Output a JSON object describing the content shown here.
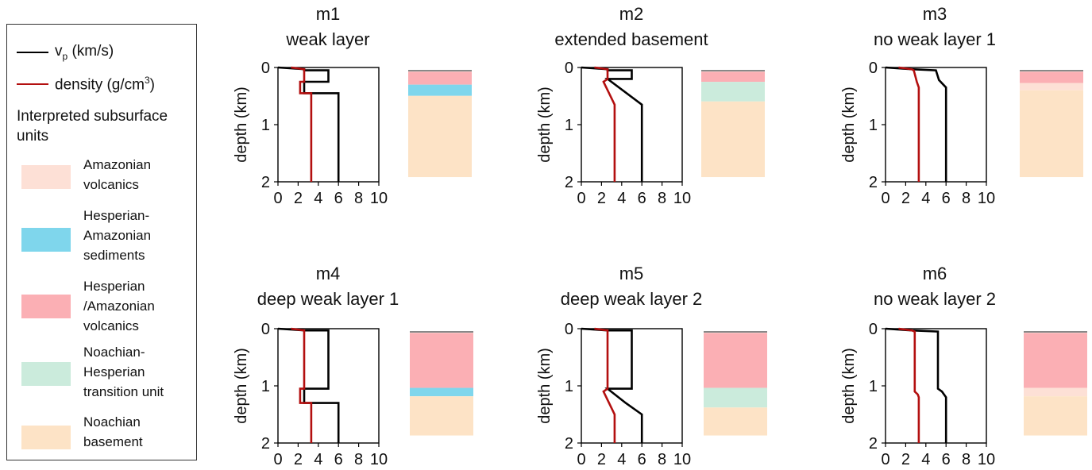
{
  "legend": {
    "vp_label_main": "v",
    "vp_label_sub": "p",
    "vp_label_unit": " (km/s)",
    "vp_color": "#000000",
    "density_label": "density (g/cm",
    "density_sup": "3",
    "density_close": ")",
    "density_color": "#b30f0f",
    "heading": "Interpreted subsurface units",
    "units": [
      {
        "key": "amazonian_volcanics",
        "label": "Amazonian\nvolcanics",
        "color": "#fde0d6"
      },
      {
        "key": "hesperian_amazonian_sediments",
        "label": "Hesperian-\nAmazonian\nsediments",
        "color": "#7fd6ec"
      },
      {
        "key": "hesperian_amazonian_volcanics",
        "label": "Hesperian\n/Amazonian\nvolcanics",
        "color": "#fbafb4"
      },
      {
        "key": "noachian_hesperian_transition",
        "label": "Noachian-\nHesperian\ntransition unit",
        "color": "#cbebdc"
      },
      {
        "key": "noachian_basement",
        "label": "Noachian\nbasement",
        "color": "#fde3c6"
      }
    ]
  },
  "chart_data": [
    {
      "type": "line",
      "id": "m1",
      "title": [
        "m1",
        "weak layer"
      ],
      "ylabel": "depth (km)",
      "xlim": [
        0,
        10
      ],
      "ylim": [
        2,
        0
      ],
      "xticks": [
        "0",
        "2",
        "4",
        "6",
        "8",
        "10"
      ],
      "yticks": [
        "0",
        "1",
        "2"
      ],
      "series": [
        {
          "name": "vp",
          "color": "#000000",
          "x": [
            0,
            2.6,
            2.6,
            5.0,
            5.0,
            2.6,
            2.6,
            6.0,
            6.0,
            6.0
          ],
          "y": [
            0,
            0.03,
            0.05,
            0.05,
            0.25,
            0.25,
            0.45,
            0.45,
            1.9,
            2.0
          ]
        },
        {
          "name": "density",
          "color": "#b30f0f",
          "x": [
            1.3,
            2.6,
            2.6,
            2.2,
            2.2,
            2.6,
            2.6,
            3.3,
            3.3,
            3.3
          ],
          "y": [
            0,
            0.03,
            0.25,
            0.25,
            0.45,
            0.45,
            0.45,
            0.45,
            1.9,
            2.0
          ]
        }
      ],
      "column": [
        {
          "unit": "amazonian_volcanics",
          "top": 0,
          "bottom": 0.02
        },
        {
          "unit": "hesperian_amazonian_volcanics",
          "top": 0.02,
          "bottom": 0.25
        },
        {
          "unit": "hesperian_amazonian_sediments",
          "top": 0.25,
          "bottom": 0.45
        },
        {
          "unit": "noachian_basement",
          "top": 0.45,
          "bottom": 1.9
        }
      ]
    },
    {
      "type": "line",
      "id": "m2",
      "title": [
        "m2",
        "extended basement"
      ],
      "ylabel": "depth (km)",
      "xlim": [
        0,
        10
      ],
      "ylim": [
        2,
        0
      ],
      "xticks": [
        "0",
        "2",
        "4",
        "6",
        "8",
        "10"
      ],
      "yticks": [
        "0",
        "1",
        "2"
      ],
      "series": [
        {
          "name": "vp",
          "color": "#000000",
          "x": [
            0,
            2.6,
            2.6,
            5.0,
            5.0,
            2.6,
            6.0,
            6.0
          ],
          "y": [
            0,
            0.03,
            0.05,
            0.05,
            0.2,
            0.2,
            0.65,
            2.0
          ]
        },
        {
          "name": "density",
          "color": "#b30f0f",
          "x": [
            1.3,
            2.6,
            2.6,
            2.2,
            3.3,
            3.3
          ],
          "y": [
            0,
            0.03,
            0.2,
            0.25,
            0.65,
            2.0
          ]
        }
      ],
      "column": [
        {
          "unit": "amazonian_volcanics",
          "top": 0,
          "bottom": 0.02
        },
        {
          "unit": "hesperian_amazonian_volcanics",
          "top": 0.02,
          "bottom": 0.2
        },
        {
          "unit": "noachian_hesperian_transition",
          "top": 0.2,
          "bottom": 0.55
        },
        {
          "unit": "noachian_basement",
          "top": 0.55,
          "bottom": 1.9
        }
      ]
    },
    {
      "type": "line",
      "id": "m3",
      "title": [
        "m3",
        "no weak layer 1"
      ],
      "ylabel": "depth (km)",
      "xlim": [
        0,
        10
      ],
      "ylim": [
        2,
        0
      ],
      "xticks": [
        "0",
        "2",
        "4",
        "6",
        "8",
        "10"
      ],
      "yticks": [
        "0",
        "1",
        "2"
      ],
      "series": [
        {
          "name": "vp",
          "color": "#000000",
          "x": [
            0,
            2.6,
            5.0,
            5.3,
            6.0,
            6.0
          ],
          "y": [
            0,
            0.03,
            0.05,
            0.22,
            0.35,
            2.0
          ]
        },
        {
          "name": "density",
          "color": "#b30f0f",
          "x": [
            1.3,
            2.6,
            2.8,
            3.1,
            3.3,
            3.3
          ],
          "y": [
            0,
            0.03,
            0.05,
            0.25,
            0.35,
            2.0
          ]
        }
      ],
      "column": [
        {
          "unit": "amazonian_volcanics",
          "top": 0,
          "bottom": 0.02
        },
        {
          "unit": "hesperian_amazonian_volcanics",
          "top": 0.02,
          "bottom": 0.22
        },
        {
          "unit": "amazonian_volcanics",
          "top": 0.22,
          "bottom": 0.35
        },
        {
          "unit": "noachian_basement",
          "top": 0.35,
          "bottom": 1.9
        }
      ]
    },
    {
      "type": "line",
      "id": "m4",
      "title": [
        "m4",
        "deep weak layer 1"
      ],
      "ylabel": "depth (km)",
      "xlim": [
        0,
        10
      ],
      "ylim": [
        2,
        0
      ],
      "xticks": [
        "0",
        "2",
        "4",
        "6",
        "8",
        "10"
      ],
      "yticks": [
        "0",
        "1",
        "2"
      ],
      "series": [
        {
          "name": "vp",
          "color": "#000000",
          "x": [
            0,
            2.6,
            2.6,
            5.0,
            5.0,
            2.6,
            2.6,
            6.0,
            6.0
          ],
          "y": [
            0,
            0.03,
            0.03,
            0.03,
            1.05,
            1.05,
            1.3,
            1.3,
            2.0
          ]
        },
        {
          "name": "density",
          "color": "#b30f0f",
          "x": [
            1.3,
            2.6,
            2.6,
            2.2,
            2.2,
            2.6,
            3.3,
            3.3
          ],
          "y": [
            0,
            0.03,
            1.05,
            1.05,
            1.3,
            1.3,
            1.3,
            2.0
          ]
        }
      ],
      "column": [
        {
          "unit": "amazonian_volcanics",
          "top": 0,
          "bottom": 0.02
        },
        {
          "unit": "hesperian_amazonian_volcanics",
          "top": 0.02,
          "bottom": 1.0
        },
        {
          "unit": "hesperian_amazonian_sediments",
          "top": 1.0,
          "bottom": 1.15
        },
        {
          "unit": "noachian_basement",
          "top": 1.15,
          "bottom": 1.85
        }
      ]
    },
    {
      "type": "line",
      "id": "m5",
      "title": [
        "m5",
        "deep weak layer 2"
      ],
      "ylabel": "depth (km)",
      "xlim": [
        0,
        10
      ],
      "ylim": [
        2,
        0
      ],
      "xticks": [
        "0",
        "2",
        "4",
        "6",
        "8",
        "10"
      ],
      "yticks": [
        "0",
        "1",
        "2"
      ],
      "series": [
        {
          "name": "vp",
          "color": "#000000",
          "x": [
            0,
            2.6,
            2.6,
            5.0,
            5.0,
            2.6,
            4.4,
            6.0,
            6.0
          ],
          "y": [
            0,
            0.03,
            0.03,
            0.03,
            1.05,
            1.05,
            1.3,
            1.5,
            2.0
          ]
        },
        {
          "name": "density",
          "color": "#b30f0f",
          "x": [
            1.3,
            2.6,
            2.6,
            2.2,
            3.3,
            3.3
          ],
          "y": [
            0,
            0.03,
            1.05,
            1.1,
            1.5,
            2.0
          ]
        }
      ],
      "column": [
        {
          "unit": "amazonian_volcanics",
          "top": 0,
          "bottom": 0.02
        },
        {
          "unit": "hesperian_amazonian_volcanics",
          "top": 0.02,
          "bottom": 1.0
        },
        {
          "unit": "noachian_hesperian_transition",
          "top": 1.0,
          "bottom": 1.35
        },
        {
          "unit": "noachian_basement",
          "top": 1.35,
          "bottom": 1.85
        }
      ]
    },
    {
      "type": "line",
      "id": "m6",
      "title": [
        "m6",
        "no weak layer 2"
      ],
      "ylabel": "depth (km)",
      "xlim": [
        0,
        10
      ],
      "ylim": [
        2,
        0
      ],
      "xticks": [
        "0",
        "2",
        "4",
        "6",
        "8",
        "10"
      ],
      "yticks": [
        "0",
        "1",
        "2"
      ],
      "series": [
        {
          "name": "vp",
          "color": "#000000",
          "x": [
            0,
            2.6,
            5.2,
            5.2,
            5.6,
            6.0,
            6.0
          ],
          "y": [
            0,
            0.03,
            0.05,
            1.05,
            1.1,
            1.2,
            2.0
          ]
        },
        {
          "name": "density",
          "color": "#b30f0f",
          "x": [
            1.3,
            2.6,
            2.9,
            2.9,
            3.2,
            3.3,
            3.3
          ],
          "y": [
            0,
            0.03,
            0.05,
            1.1,
            1.15,
            1.2,
            2.0
          ]
        }
      ],
      "column": [
        {
          "unit": "amazonian_volcanics",
          "top": 0,
          "bottom": 0.02
        },
        {
          "unit": "hesperian_amazonian_volcanics",
          "top": 0.02,
          "bottom": 1.0
        },
        {
          "unit": "amazonian_volcanics",
          "top": 1.0,
          "bottom": 1.15
        },
        {
          "unit": "noachian_basement",
          "top": 1.15,
          "bottom": 1.85
        }
      ]
    }
  ]
}
